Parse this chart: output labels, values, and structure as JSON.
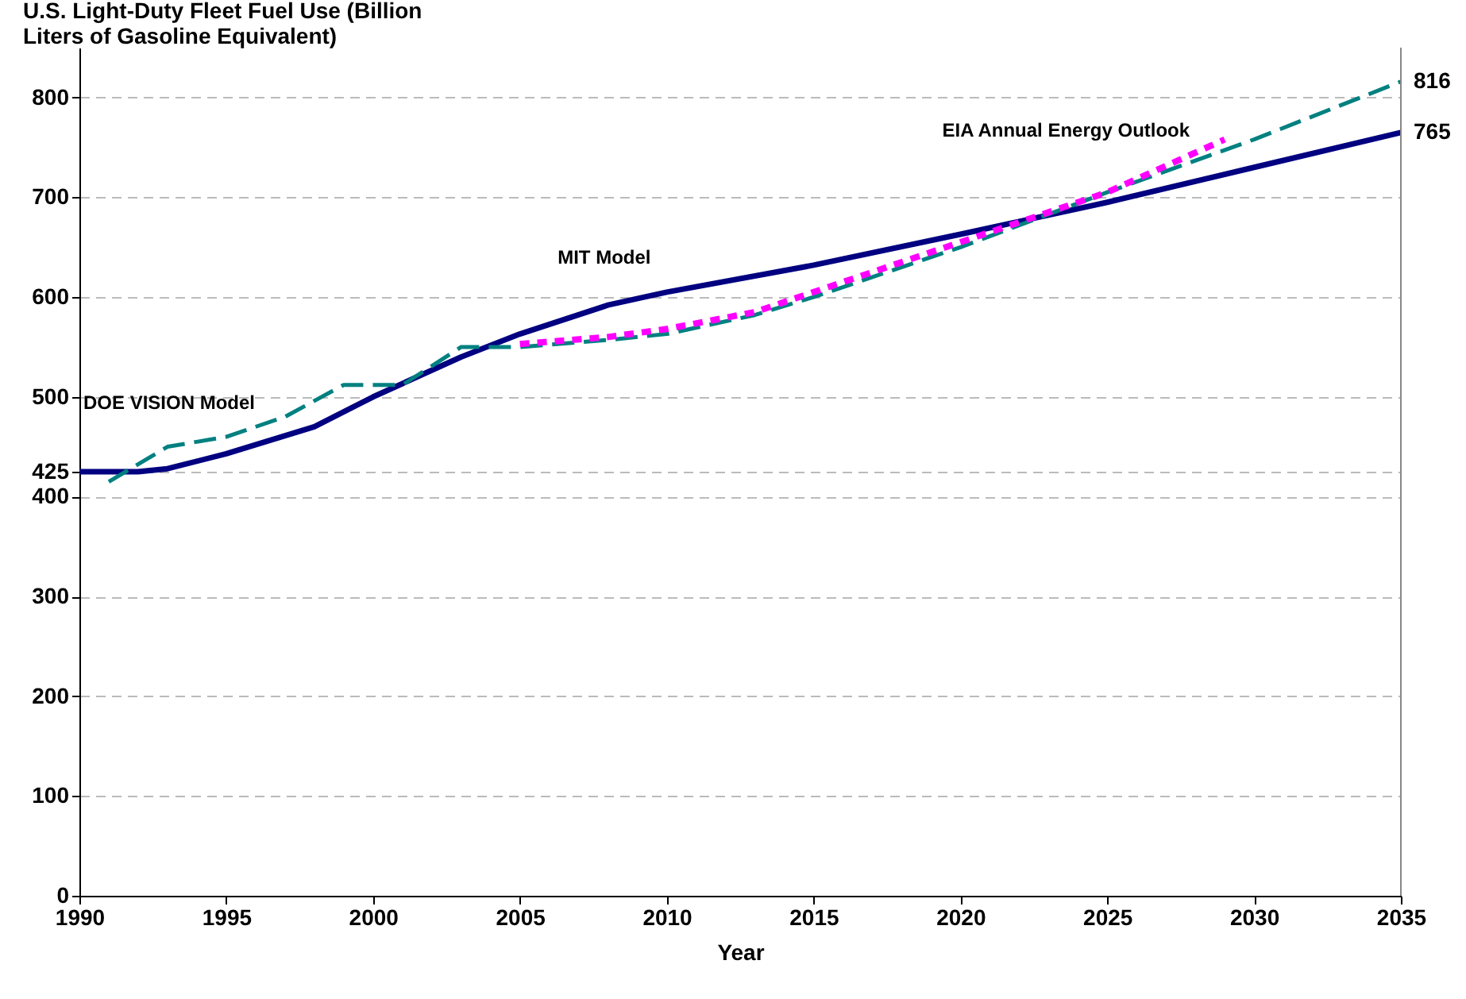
{
  "chart_data": {
    "type": "line",
    "ylabel": "U.S. Light-Duty Fleet Fuel Use (Billion Liters of Gasoline Equivalent)",
    "xlabel": "Year",
    "series": [
      {
        "name": "MIT Model",
        "color": "#000080",
        "line_style": "solid",
        "x": [
          1990,
          1992,
          1993,
          1995,
          1998,
          2000,
          2003,
          2005,
          2008,
          2010,
          2015,
          2020,
          2025,
          2030,
          2035
        ],
        "values": [
          425,
          425,
          428,
          443,
          470,
          500,
          540,
          563,
          592,
          605,
          632,
          663,
          695,
          730,
          765
        ]
      },
      {
        "name": "DOE VISION Model",
        "color": "#008080",
        "line_style": "dashed",
        "x": [
          1991,
          1993,
          1995,
          1997,
          1999,
          2001,
          2003,
          2005,
          2008,
          2010,
          2013,
          2015,
          2020,
          2025,
          2030,
          2035
        ],
        "values": [
          415,
          450,
          460,
          480,
          512,
          512,
          550,
          550,
          557,
          563,
          582,
          600,
          650,
          705,
          758,
          816
        ]
      },
      {
        "name": "EIA Annual Energy Outlook",
        "color": "#ff00ff",
        "line_style": "dotted",
        "x": [
          2005,
          2008,
          2010,
          2013,
          2015,
          2020,
          2025,
          2029
        ],
        "values": [
          553,
          560,
          568,
          585,
          605,
          655,
          705,
          758
        ]
      }
    ],
    "annotations": [
      {
        "text": "816",
        "x": 2035,
        "y": 816
      },
      {
        "text": "765",
        "x": 2035,
        "y": 765
      }
    ],
    "xlim": [
      1990,
      2035
    ],
    "xticks": [
      1990,
      1995,
      2000,
      2005,
      2010,
      2015,
      2020,
      2025,
      2030,
      2035
    ],
    "ylim": [
      0,
      850
    ],
    "yticks": [
      0,
      100,
      200,
      300,
      400,
      425,
      500,
      600,
      700,
      800
    ],
    "grid": "y",
    "legend": false,
    "marker": "none"
  }
}
